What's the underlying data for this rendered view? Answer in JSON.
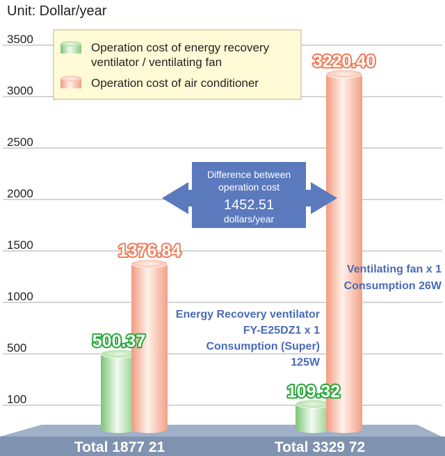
{
  "unit_label": "Unit: Dollar/year",
  "legend": {
    "items": [
      {
        "lines": [
          "Operation cost of energy recovery",
          "ventilator / ventilating fan"
        ],
        "color": "#8fd18a"
      },
      {
        "lines": [
          "Operation cost of air conditioner"
        ],
        "color": "#f4a488"
      }
    ]
  },
  "difference_box": {
    "lines": [
      "Difference between",
      "operation cost",
      "1452.51",
      "dollars/year"
    ],
    "color": "#5b79bd"
  },
  "notes": {
    "erv": [
      "Energy Recovery ventilator",
      "FY-E25DZ1 x 1",
      "Consumption (Super)",
      "125W"
    ],
    "fan": [
      "Ventilating fan x 1",
      "Consumption 26W"
    ]
  },
  "totals": [
    "Total 1877 21",
    "Total 3329 72"
  ],
  "colors": {
    "green": "#8fd18a",
    "salmon": "#f4a488",
    "floor": "#7f93b0",
    "note_blue": "#4a6bb5"
  },
  "chart_data": {
    "type": "bar",
    "title": "",
    "xlabel": "",
    "ylabel": "Unit: Dollar/year",
    "yticks": [
      100,
      500,
      1000,
      1500,
      2000,
      2500,
      3000,
      3500
    ],
    "ylim": [
      0,
      3500
    ],
    "grid": true,
    "legend_position": "top-left",
    "categories": [
      "Energy Recovery ventilator",
      "Ventilating fan"
    ],
    "series": [
      {
        "name": "Operation cost of energy recovery ventilator / ventilating fan",
        "values": [
          500.37,
          109.32
        ],
        "labels": [
          "500.37",
          "109.32"
        ]
      },
      {
        "name": "Operation cost of air conditioner",
        "values": [
          1376.84,
          3220.4
        ],
        "labels": [
          "1376.84",
          "3220.40"
        ]
      }
    ]
  }
}
